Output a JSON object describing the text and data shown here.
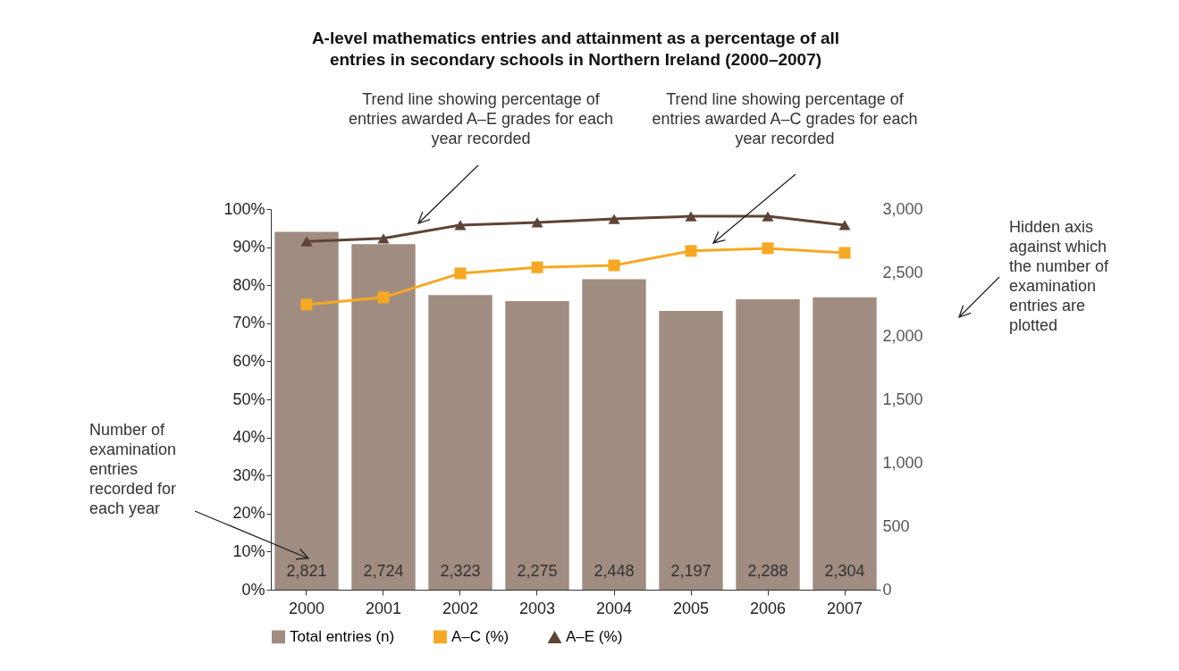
{
  "chart_data": {
    "type": "bar",
    "title": "A-level mathematics entries and attainment as a percentage of all entries in secondary schools in Northern Ireland (2000–2007)",
    "categories": [
      "2000",
      "2001",
      "2002",
      "2003",
      "2004",
      "2005",
      "2006",
      "2007"
    ],
    "series": [
      {
        "name": "Total entries (n)",
        "color": "#a08c80",
        "axis": "y2",
        "values": [
          2821,
          2724,
          2323,
          2275,
          2448,
          2197,
          2288,
          2304
        ],
        "value_labels": [
          "2,821",
          "2,724",
          "2,323",
          "2,275",
          "2,448",
          "2,197",
          "2,288",
          "2,304"
        ]
      },
      {
        "name": "A–C (%)",
        "type": "line",
        "color": "#f7a823",
        "marker": "square",
        "values": [
          74.9,
          76.8,
          83.1,
          84.7,
          85.2,
          89.0,
          89.7,
          88.5
        ]
      },
      {
        "name": "A–E (%)",
        "type": "line",
        "color": "#5e4436",
        "marker": "triangle",
        "values": [
          91.5,
          92.3,
          95.8,
          96.5,
          97.4,
          98.1,
          98.1,
          95.8
        ]
      }
    ],
    "ylim": [
      0,
      100
    ],
    "yticks": [
      {
        "value": 0,
        "label": "0%"
      },
      {
        "value": 10,
        "label": "10%"
      },
      {
        "value": 20,
        "label": "20%"
      },
      {
        "value": 30,
        "label": "30%"
      },
      {
        "value": 40,
        "label": "40%"
      },
      {
        "value": 50,
        "label": "50%"
      },
      {
        "value": 60,
        "label": "60%"
      },
      {
        "value": 70,
        "label": "70%"
      },
      {
        "value": 80,
        "label": "80%"
      },
      {
        "value": 90,
        "label": "90%"
      },
      {
        "value": 100,
        "label": "100%"
      }
    ],
    "y2lim": [
      0,
      3000
    ],
    "y2ticks": [
      0,
      500,
      {
        "value": 1000,
        "label": "1,000"
      },
      {
        "value": 1500,
        "label": "1,500"
      },
      {
        "value": 2000,
        "label": "2,000"
      },
      {
        "value": 2500,
        "label": "2,500"
      },
      {
        "value": 3000,
        "label": "3,000"
      }
    ],
    "legend": "bottom",
    "annotations": [
      "Trend line showing percentage of entries awarded A–E grades for each year recorded",
      "Trend line showing percentage of entries awarded A–C grades for each year recorded",
      "Hidden axis against which the number of examination entries are plotted",
      "Number of examination entries recorded for each year"
    ]
  }
}
